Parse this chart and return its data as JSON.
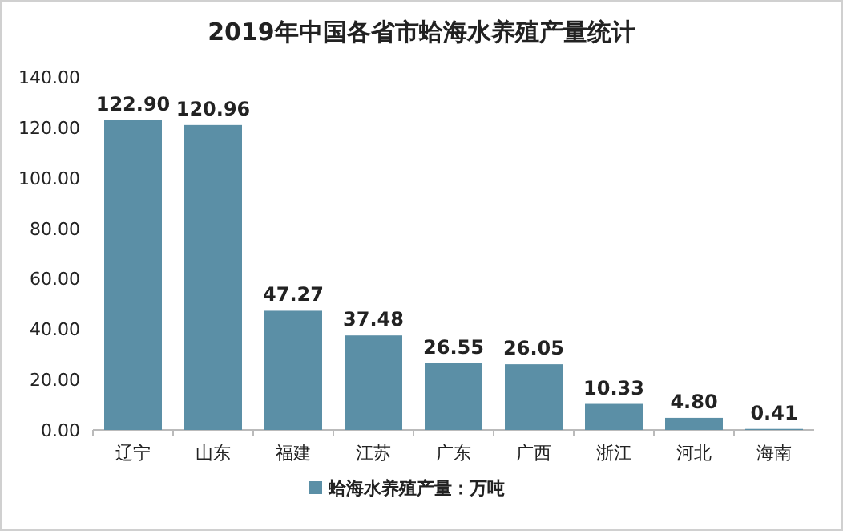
{
  "chart_data": {
    "type": "bar",
    "title": "2019年中国各省市蛤海水养殖产量统计",
    "categories": [
      "辽宁",
      "山东",
      "福建",
      "江苏",
      "广东",
      "广西",
      "浙江",
      "河北",
      "海南"
    ],
    "series": [
      {
        "name": "蛤海水养殖产量：万吨",
        "color": "#5b8fa6",
        "values": [
          122.9,
          120.96,
          47.27,
          37.48,
          26.55,
          26.05,
          10.33,
          4.8,
          0.41
        ],
        "value_labels": [
          "122.90",
          "120.96",
          "47.27",
          "37.48",
          "26.55",
          "26.05",
          "10.33",
          "4.80",
          "0.41"
        ]
      }
    ],
    "ylim": [
      0,
      140
    ],
    "yticks": [
      {
        "value": 0,
        "label": "0.00"
      },
      {
        "value": 20,
        "label": "20.00"
      },
      {
        "value": 40,
        "label": "40.00"
      },
      {
        "value": 60,
        "label": "60.00"
      },
      {
        "value": 80,
        "label": "80.00"
      },
      {
        "value": 100,
        "label": "100.00"
      },
      {
        "value": 120,
        "label": "120.00"
      },
      {
        "value": 140,
        "label": "140.00"
      }
    ],
    "legend": "bottom"
  }
}
